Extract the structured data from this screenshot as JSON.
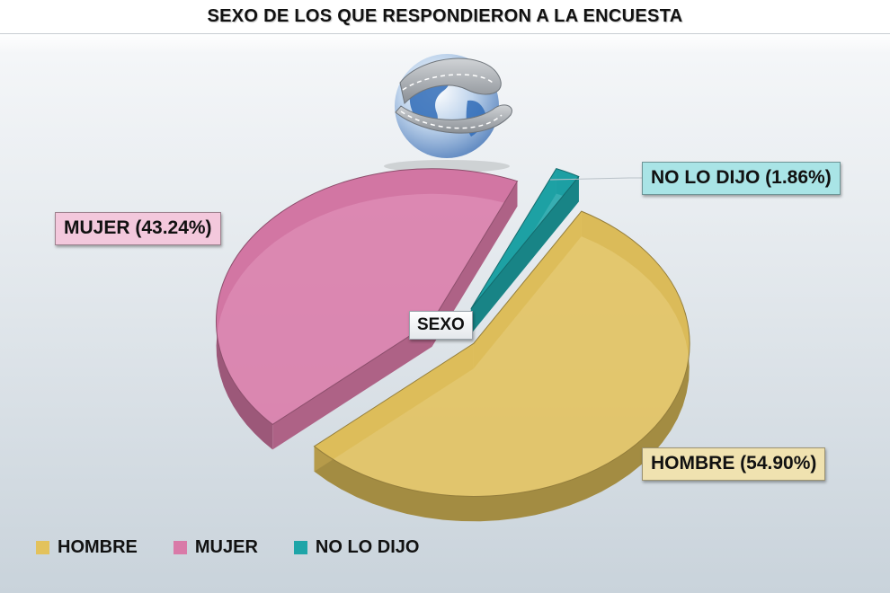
{
  "title": "SEXO DE LOS QUE RESPONDIERON A LA ENCUESTA",
  "center_label": "SEXO",
  "colors": {
    "hombre": "#e3c25c",
    "mujer": "#d97aa8",
    "nolodijo": "#1ea5a8"
  },
  "chart_data": {
    "type": "pie",
    "title": "SEXO DE LOS QUE RESPONDIERON A LA ENCUESTA",
    "slices": [
      {
        "label": "HOMBRE",
        "value": 54.9,
        "data_label": "HOMBRE (54.90%)",
        "color": "#e3c25c"
      },
      {
        "label": "MUJER",
        "value": 43.24,
        "data_label": "MUJER (43.24%)",
        "color": "#d97aa8"
      },
      {
        "label": "NO LO DIJO",
        "value": 1.86,
        "data_label": "NO LO DIJO (1.86%)",
        "color": "#1ea5a8"
      }
    ],
    "legend": [
      "HOMBRE",
      "MUJER",
      "NO LO DIJO"
    ],
    "legend_position": "bottom-left"
  },
  "icon": "globe-with-road-icon"
}
